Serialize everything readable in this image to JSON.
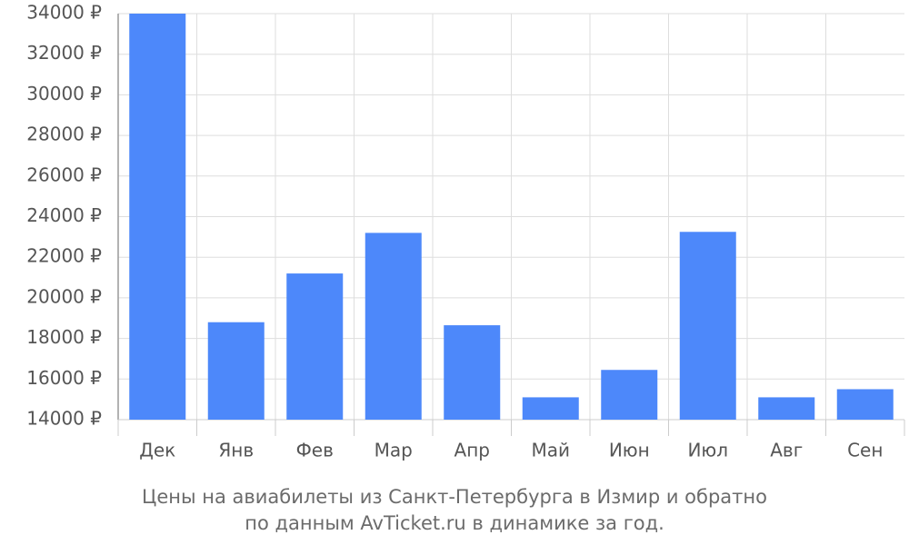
{
  "chart_data": {
    "type": "bar",
    "caption": [
      "Цены на авиабилеты из Санкт-Петербурга в Измир и обратно",
      "по данным AvTicket.ru в динамике за год."
    ],
    "categories": [
      "Дек",
      "Янв",
      "Фев",
      "Мар",
      "Апр",
      "Май",
      "Июн",
      "Июл",
      "Авг",
      "Сен"
    ],
    "values": [
      34000,
      18800,
      21200,
      23200,
      18650,
      15100,
      16450,
      23250,
      15100,
      15500
    ],
    "color": "#4d88fa",
    "ylim": [
      14000,
      34000
    ],
    "yticks": [
      {
        "value": 14000,
        "label": "14000 ₽"
      },
      {
        "value": 16000,
        "label": "16000 ₽"
      },
      {
        "value": 18000,
        "label": "18000 ₽"
      },
      {
        "value": 20000,
        "label": "20000 ₽"
      },
      {
        "value": 22000,
        "label": "22000 ₽"
      },
      {
        "value": 24000,
        "label": "24000 ₽"
      },
      {
        "value": 26000,
        "label": "26000 ₽"
      },
      {
        "value": 28000,
        "label": "28000 ₽"
      },
      {
        "value": 30000,
        "label": "30000 ₽"
      },
      {
        "value": 32000,
        "label": "32000 ₽"
      },
      {
        "value": 34000,
        "label": "34000 ₽"
      }
    ],
    "grid": true
  }
}
